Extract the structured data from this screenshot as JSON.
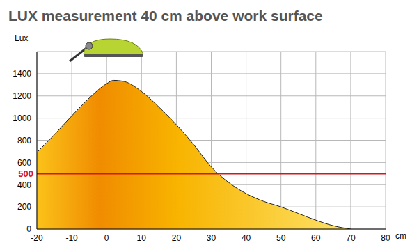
{
  "chart_data": {
    "type": "area",
    "title": "LUX measurement 40 cm above work surface",
    "x_label": "cm",
    "y_label": "Lux",
    "x": [
      -20,
      -15,
      -10,
      -5,
      0,
      2,
      5,
      10,
      15,
      20,
      25,
      30,
      35,
      40,
      45,
      50,
      55,
      60,
      65,
      70
    ],
    "values": [
      690,
      850,
      1020,
      1180,
      1310,
      1340,
      1330,
      1240,
      1100,
      940,
      760,
      560,
      420,
      320,
      250,
      200,
      140,
      80,
      30,
      0
    ],
    "color": "#f8b400",
    "xlim": [
      -20,
      80
    ],
    "xticks": [
      -20,
      -10,
      0,
      10,
      20,
      30,
      40,
      50,
      60,
      70,
      80
    ],
    "ylim": [
      0,
      1600
    ],
    "yticks": [
      0,
      200,
      400,
      600,
      800,
      1000,
      1200,
      1400
    ],
    "grid": true,
    "reference_line": {
      "value": 500,
      "label": "500",
      "color": "#d7141a"
    }
  }
}
